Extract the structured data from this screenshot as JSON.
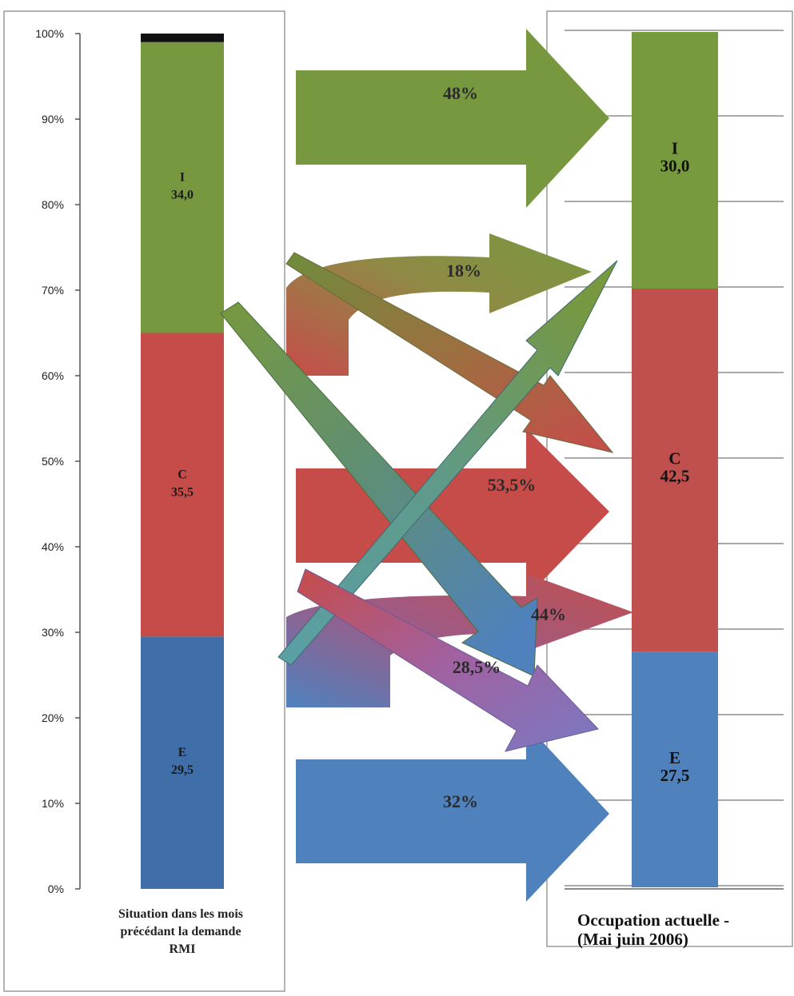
{
  "chart_data": [
    {
      "type": "bar",
      "stacked": true,
      "caption_lines": [
        "Situation dans les mois",
        "précédant la demande",
        "RMI"
      ],
      "ylim": [
        0,
        100
      ],
      "y_ticks": [
        "0%",
        "10%",
        "20%",
        "30%",
        "40%",
        "50%",
        "60%",
        "70%",
        "80%",
        "90%",
        "100%"
      ],
      "grid": false,
      "segments": [
        {
          "letter": "E",
          "value": 29.5,
          "label": "29,5",
          "color": "#3f6ea8"
        },
        {
          "letter": "C",
          "value": 35.5,
          "label": "35,5",
          "color": "#c64c4a"
        },
        {
          "letter": "I",
          "value": 34.0,
          "label": "34,0",
          "color": "#77983f"
        },
        {
          "letter": "",
          "value": 1.0,
          "label": "",
          "color": "#111111"
        }
      ]
    },
    {
      "type": "bar",
      "stacked": true,
      "caption_lines": [
        "Occupation actuelle  -",
        "(Mai    juin 2006)"
      ],
      "ylim": [
        0,
        100
      ],
      "grid": true,
      "segments": [
        {
          "letter": "E",
          "value": 27.5,
          "label": "27,5",
          "color": "#4f81bd"
        },
        {
          "letter": "C",
          "value": 42.5,
          "label": "42,5",
          "color": "#c0504d"
        },
        {
          "letter": "I",
          "value": 30.0,
          "label": "30,0",
          "color": "#779a3e"
        }
      ]
    }
  ],
  "flows": [
    {
      "name": "flow-i-to-i",
      "label": "48%",
      "from": "I",
      "to": "I",
      "color": "#77983f"
    },
    {
      "name": "flow-c-to-i",
      "label": "18%",
      "from": "C",
      "to": "I",
      "color": "#8a9448"
    },
    {
      "name": "flow-c-to-c",
      "label": "53,5%",
      "from": "C",
      "to": "C",
      "color": "#c64c4a"
    },
    {
      "name": "flow-e-to-c",
      "label": "44%",
      "from": "E",
      "to": "C",
      "color": "#b55a7a"
    },
    {
      "name": "flow-e-to-e",
      "label": "32%",
      "from": "E",
      "to": "E",
      "color": "#4f81bd"
    },
    {
      "name": "flow-i-to-e",
      "label": "",
      "from": "I",
      "to": "E",
      "color": "#5b8fb0"
    },
    {
      "name": "flow-c-to-e",
      "label": "28,5%",
      "from": "C",
      "to": "E",
      "color": "#8a6aaa"
    },
    {
      "name": "flow-i-to-c",
      "label": "",
      "from": "I",
      "to": "C",
      "color": "#a06c42"
    },
    {
      "name": "flow-e-to-i",
      "label": "",
      "from": "E",
      "to": "I",
      "color": "#5d9aa0"
    }
  ]
}
